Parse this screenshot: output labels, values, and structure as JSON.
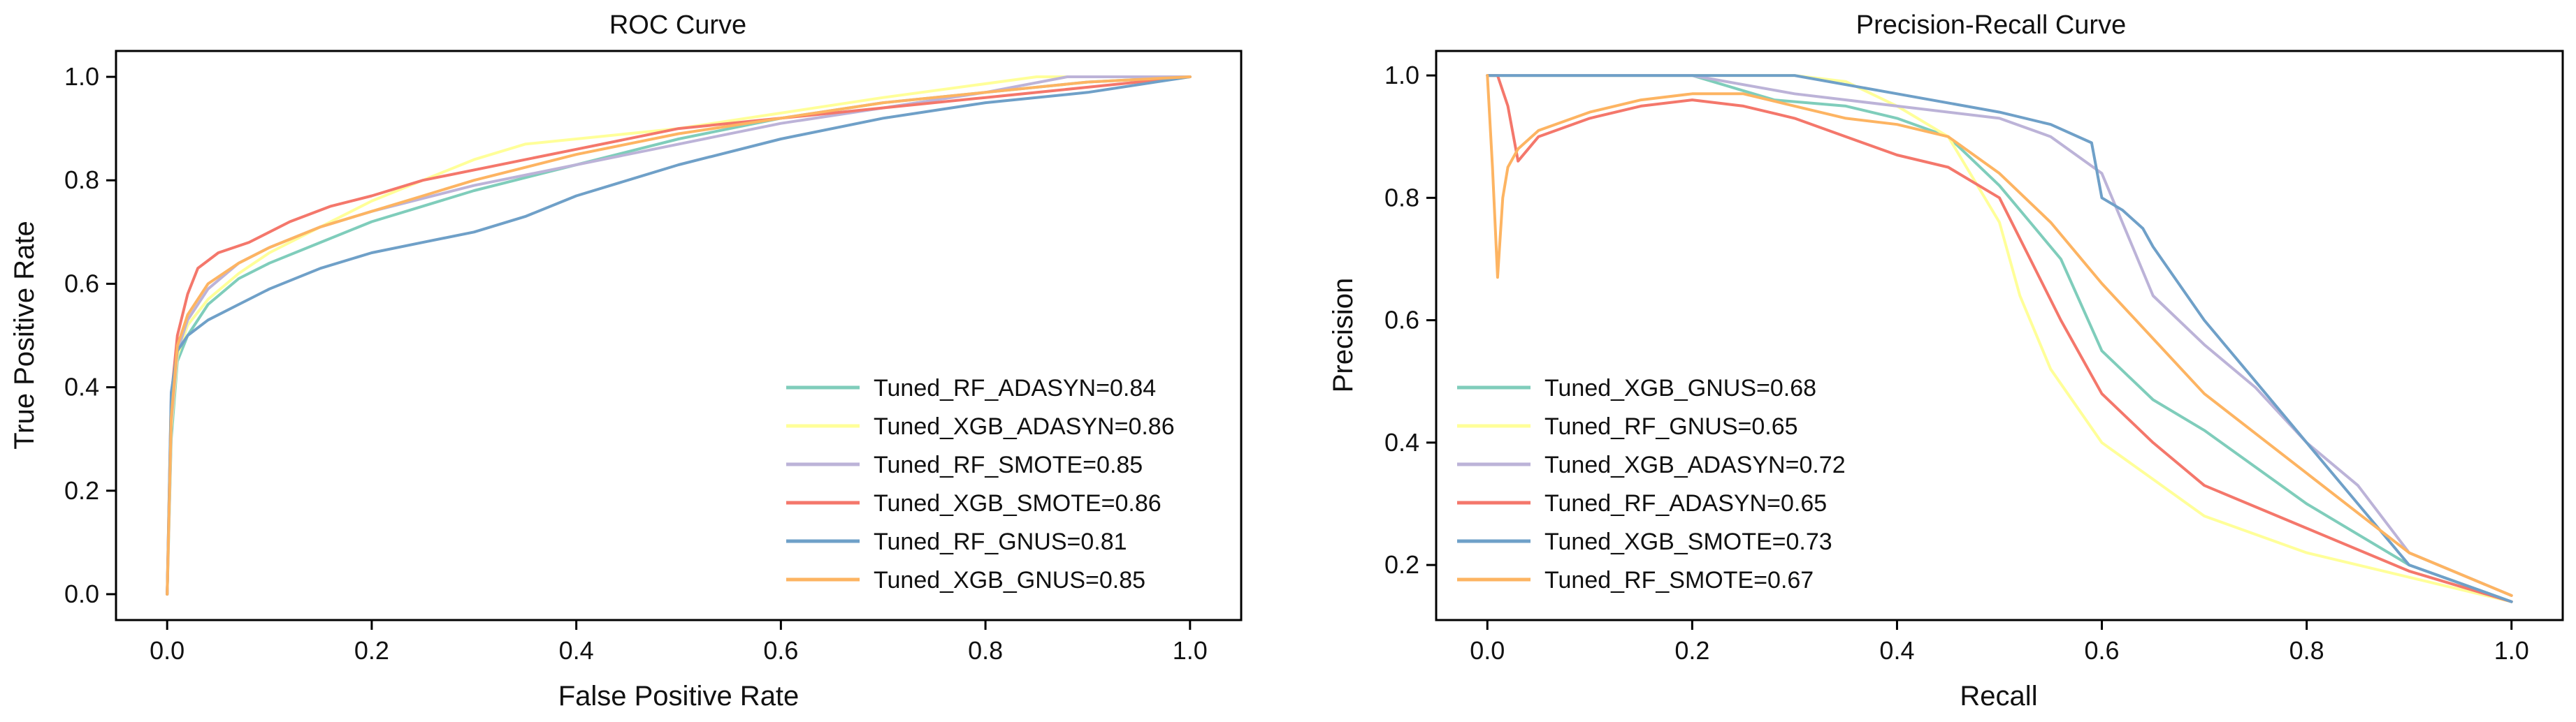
{
  "chart_data": [
    {
      "type": "line",
      "title": "ROC Curve",
      "xlabel": "False Positive Rate",
      "ylabel": "True Positive Rate",
      "xlim": [
        -0.05,
        1.05
      ],
      "ylim": [
        -0.05,
        1.05
      ],
      "xticks": [
        0.0,
        0.2,
        0.4,
        0.6,
        0.8,
        1.0
      ],
      "yticks": [
        0.0,
        0.2,
        0.4,
        0.6,
        0.8,
        1.0
      ],
      "xtick_labels": [
        "0.0",
        "0.2",
        "0.4",
        "0.6",
        "0.8",
        "1.0"
      ],
      "ytick_labels": [
        "0.0",
        "0.2",
        "0.4",
        "0.6",
        "0.8",
        "1.0"
      ],
      "grid": false,
      "legend_position": "lower-right",
      "series": [
        {
          "name": "Tuned_RF_ADASYN",
          "legend": "Tuned_RF_ADASYN=0.84",
          "color": "#7fcdbb",
          "x": [
            0,
            0.004,
            0.01,
            0.02,
            0.04,
            0.07,
            0.1,
            0.15,
            0.2,
            0.25,
            0.3,
            0.4,
            0.5,
            0.6,
            0.7,
            0.8,
            0.9,
            1.0
          ],
          "y": [
            0,
            0.3,
            0.45,
            0.5,
            0.56,
            0.61,
            0.64,
            0.68,
            0.72,
            0.75,
            0.78,
            0.83,
            0.88,
            0.92,
            0.95,
            0.97,
            0.99,
            1.0
          ]
        },
        {
          "name": "Tuned_XGB_ADASYN",
          "legend": "Tuned_XGB_ADASYN=0.86",
          "color": "#ffff99",
          "x": [
            0,
            0.004,
            0.01,
            0.02,
            0.04,
            0.07,
            0.1,
            0.15,
            0.2,
            0.25,
            0.3,
            0.35,
            0.4,
            0.5,
            0.6,
            0.7,
            0.85,
            1.0
          ],
          "y": [
            0,
            0.32,
            0.46,
            0.52,
            0.57,
            0.62,
            0.66,
            0.71,
            0.76,
            0.8,
            0.84,
            0.87,
            0.88,
            0.9,
            0.93,
            0.96,
            1.0,
            1.0
          ]
        },
        {
          "name": "Tuned_RF_SMOTE",
          "legend": "Tuned_RF_SMOTE=0.85",
          "color": "#bcb3d8",
          "x": [
            0,
            0.004,
            0.01,
            0.02,
            0.04,
            0.07,
            0.1,
            0.15,
            0.2,
            0.3,
            0.4,
            0.5,
            0.6,
            0.7,
            0.8,
            0.88,
            0.95,
            1.0
          ],
          "y": [
            0,
            0.33,
            0.47,
            0.53,
            0.59,
            0.64,
            0.67,
            0.71,
            0.74,
            0.79,
            0.83,
            0.87,
            0.91,
            0.94,
            0.97,
            1.0,
            1.0,
            1.0
          ]
        },
        {
          "name": "Tuned_XGB_SMOTE",
          "legend": "Tuned_XGB_SMOTE=0.86",
          "color": "#f4776b",
          "x": [
            0,
            0.004,
            0.01,
            0.02,
            0.03,
            0.05,
            0.08,
            0.12,
            0.16,
            0.2,
            0.25,
            0.3,
            0.4,
            0.5,
            0.6,
            0.7,
            0.8,
            0.9,
            1.0
          ],
          "y": [
            0,
            0.38,
            0.5,
            0.58,
            0.63,
            0.66,
            0.68,
            0.72,
            0.75,
            0.77,
            0.8,
            0.82,
            0.86,
            0.9,
            0.92,
            0.94,
            0.96,
            0.98,
            1.0
          ]
        },
        {
          "name": "Tuned_RF_GNUS",
          "legend": "Tuned_RF_GNUS=0.81",
          "color": "#6fa0c8",
          "x": [
            0,
            0.004,
            0.01,
            0.02,
            0.04,
            0.07,
            0.1,
            0.15,
            0.2,
            0.25,
            0.3,
            0.35,
            0.4,
            0.5,
            0.6,
            0.7,
            0.8,
            0.9,
            1.0
          ],
          "y": [
            0,
            0.39,
            0.47,
            0.5,
            0.53,
            0.56,
            0.59,
            0.63,
            0.66,
            0.68,
            0.7,
            0.73,
            0.77,
            0.83,
            0.88,
            0.92,
            0.95,
            0.97,
            1.0
          ]
        },
        {
          "name": "Tuned_XGB_GNUS",
          "legend": "Tuned_XGB_GNUS=0.85",
          "color": "#fdb462",
          "x": [
            0,
            0.004,
            0.01,
            0.02,
            0.04,
            0.07,
            0.1,
            0.15,
            0.2,
            0.25,
            0.3,
            0.4,
            0.5,
            0.6,
            0.7,
            0.8,
            0.9,
            1.0
          ],
          "y": [
            0,
            0.34,
            0.48,
            0.54,
            0.6,
            0.64,
            0.67,
            0.71,
            0.74,
            0.77,
            0.8,
            0.85,
            0.89,
            0.92,
            0.95,
            0.97,
            0.99,
            1.0
          ]
        }
      ]
    },
    {
      "type": "line",
      "title": "Precision-Recall Curve",
      "xlabel": "Recall",
      "ylabel": "Precision",
      "xlim": [
        -0.05,
        1.05
      ],
      "ylim": [
        0.11,
        1.04
      ],
      "xticks": [
        0.0,
        0.2,
        0.4,
        0.6,
        0.8,
        1.0
      ],
      "yticks": [
        0.2,
        0.4,
        0.6,
        0.8,
        1.0
      ],
      "xtick_labels": [
        "0.0",
        "0.2",
        "0.4",
        "0.6",
        "0.8",
        "1.0"
      ],
      "ytick_labels": [
        "0.2",
        "0.4",
        "0.6",
        "0.8",
        "1.0"
      ],
      "grid": false,
      "legend_position": "lower-left",
      "series": [
        {
          "name": "Tuned_XGB_GNUS",
          "legend": "Tuned_XGB_GNUS=0.68",
          "color": "#7fcdbb",
          "x": [
            0,
            0.1,
            0.2,
            0.28,
            0.35,
            0.4,
            0.45,
            0.5,
            0.53,
            0.56,
            0.6,
            0.65,
            0.7,
            0.8,
            0.9,
            1.0
          ],
          "y": [
            1.0,
            1.0,
            1.0,
            0.96,
            0.95,
            0.93,
            0.9,
            0.82,
            0.76,
            0.7,
            0.55,
            0.47,
            0.42,
            0.3,
            0.2,
            0.14
          ]
        },
        {
          "name": "Tuned_RF_GNUS",
          "legend": "Tuned_RF_GNUS=0.65",
          "color": "#ffff99",
          "x": [
            0,
            0.1,
            0.2,
            0.3,
            0.35,
            0.4,
            0.45,
            0.5,
            0.52,
            0.55,
            0.6,
            0.65,
            0.7,
            0.8,
            0.9,
            1.0
          ],
          "y": [
            1.0,
            1.0,
            1.0,
            1.0,
            0.99,
            0.95,
            0.9,
            0.76,
            0.64,
            0.52,
            0.4,
            0.34,
            0.28,
            0.22,
            0.18,
            0.14
          ]
        },
        {
          "name": "Tuned_XGB_ADASYN",
          "legend": "Tuned_XGB_ADASYN=0.72",
          "color": "#bcb3d8",
          "x": [
            0,
            0.1,
            0.2,
            0.3,
            0.4,
            0.5,
            0.55,
            0.6,
            0.63,
            0.65,
            0.7,
            0.75,
            0.8,
            0.85,
            0.9,
            1.0
          ],
          "y": [
            1.0,
            1.0,
            1.0,
            0.97,
            0.95,
            0.93,
            0.9,
            0.84,
            0.72,
            0.64,
            0.56,
            0.49,
            0.4,
            0.33,
            0.22,
            0.15
          ]
        },
        {
          "name": "Tuned_RF_ADASYN",
          "legend": "Tuned_RF_ADASYN=0.65",
          "color": "#f4776b",
          "x": [
            0,
            0.01,
            0.02,
            0.03,
            0.05,
            0.1,
            0.15,
            0.2,
            0.25,
            0.3,
            0.35,
            0.4,
            0.45,
            0.5,
            0.53,
            0.56,
            0.6,
            0.65,
            0.7,
            0.8,
            0.9,
            1.0
          ],
          "y": [
            1.0,
            1.0,
            0.95,
            0.86,
            0.9,
            0.93,
            0.95,
            0.96,
            0.95,
            0.93,
            0.9,
            0.87,
            0.85,
            0.8,
            0.7,
            0.6,
            0.48,
            0.4,
            0.33,
            0.26,
            0.19,
            0.14
          ]
        },
        {
          "name": "Tuned_XGB_SMOTE",
          "legend": "Tuned_XGB_SMOTE=0.73",
          "color": "#6fa0c8",
          "x": [
            0,
            0.1,
            0.2,
            0.3,
            0.4,
            0.5,
            0.55,
            0.59,
            0.6,
            0.62,
            0.64,
            0.65,
            0.7,
            0.75,
            0.8,
            0.85,
            0.9,
            1.0
          ],
          "y": [
            1.0,
            1.0,
            1.0,
            1.0,
            0.97,
            0.94,
            0.92,
            0.89,
            0.8,
            0.78,
            0.75,
            0.72,
            0.6,
            0.5,
            0.4,
            0.3,
            0.2,
            0.14
          ]
        },
        {
          "name": "Tuned_RF_SMOTE",
          "legend": "Tuned_RF_SMOTE=0.67",
          "color": "#fdb462",
          "x": [
            0,
            0.005,
            0.01,
            0.015,
            0.02,
            0.03,
            0.05,
            0.1,
            0.15,
            0.2,
            0.25,
            0.3,
            0.35,
            0.4,
            0.45,
            0.5,
            0.55,
            0.6,
            0.65,
            0.7,
            0.8,
            0.9,
            1.0
          ],
          "y": [
            1.0,
            0.85,
            0.67,
            0.8,
            0.85,
            0.88,
            0.91,
            0.94,
            0.96,
            0.97,
            0.97,
            0.95,
            0.93,
            0.92,
            0.9,
            0.84,
            0.76,
            0.66,
            0.57,
            0.48,
            0.35,
            0.22,
            0.15
          ]
        }
      ]
    }
  ]
}
